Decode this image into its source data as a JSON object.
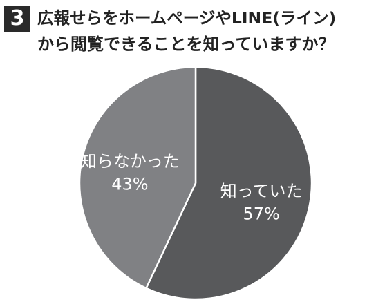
{
  "question": {
    "number": "3",
    "title_line1": "広報せらをホームページやLINE(ライン)",
    "title_line2": "から閲覧できることを知っていますか？"
  },
  "chart_data": {
    "type": "pie",
    "title": "広報せらをホームページやLINE(ライン)から閲覧できることを知っていますか？",
    "slices": [
      {
        "label": "知っていた",
        "value": 57,
        "value_label": "57%",
        "color": "#58595b"
      },
      {
        "label": "知らなかった",
        "value": 43,
        "value_label": "43%",
        "color": "#808184"
      }
    ],
    "start_angle_deg": 0,
    "direction": "clockwise",
    "legend": "none",
    "edge_color": "#ffffff"
  }
}
